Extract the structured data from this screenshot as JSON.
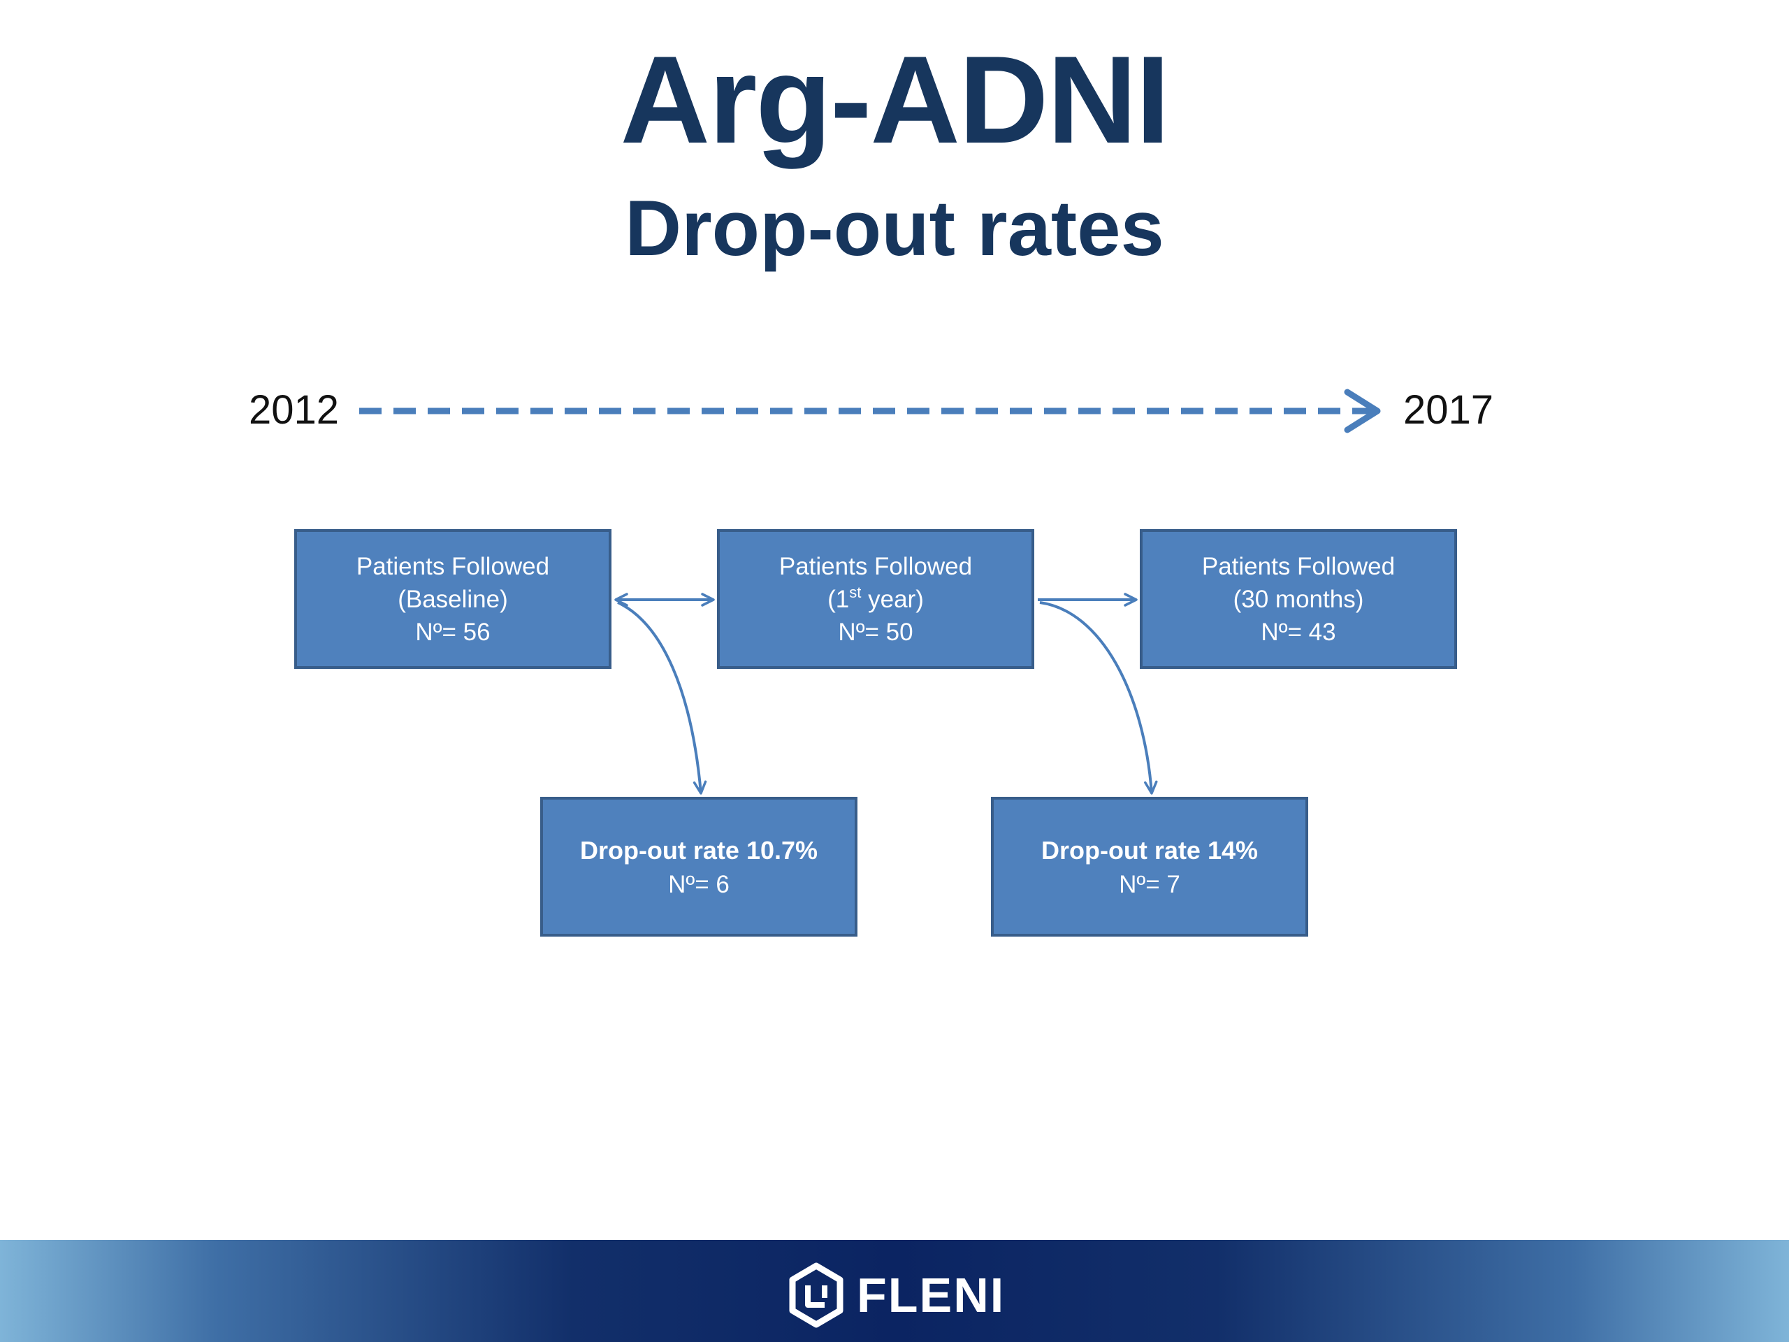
{
  "title": "Arg-ADNI",
  "subtitle": "Drop-out rates",
  "timeline": {
    "start_year": "2012",
    "end_year": "2017"
  },
  "stages": [
    {
      "label": "Patients Followed",
      "period": "(Baseline)",
      "count": "Nº= 56"
    },
    {
      "label": "Patients Followed",
      "period_open": "(1",
      "period_sup": "st",
      "period_close": " year)",
      "count": "Nº= 50"
    },
    {
      "label": "Patients Followed",
      "period": "(30 months)",
      "count": "Nº= 43"
    }
  ],
  "dropouts": [
    {
      "rate": "Drop-out rate 10.7%",
      "count": "Nº= 6"
    },
    {
      "rate": "Drop-out rate 14%",
      "count": "Nº= 7"
    }
  ],
  "footer": {
    "logo_text": "FLENI"
  },
  "colors": {
    "title": "#17365d",
    "box_fill": "#4f81bd",
    "box_border": "#385d8a",
    "arrow": "#4a7ebb",
    "footer_dark": "#0b2462",
    "footer_light": "#7fb4d8"
  }
}
